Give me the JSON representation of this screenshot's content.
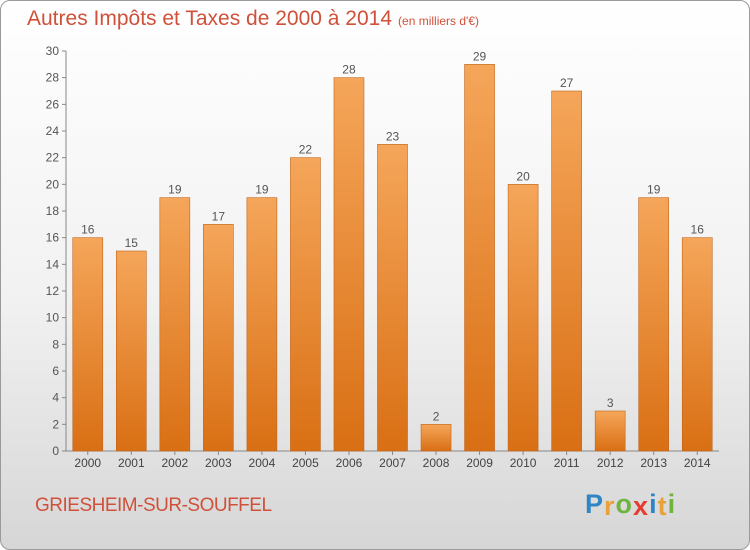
{
  "title": "Autres Impôts et Taxes de 2000 à 2014",
  "unit_note": "(en milliers d'€)",
  "commune": "GRIESHEIM-SUR-SOUFFEL",
  "logo": {
    "letters": [
      "P",
      "r",
      "o",
      "x",
      "i",
      "t",
      "i"
    ],
    "colors": [
      "#2f86c6",
      "#e8a23a",
      "#6fb43f",
      "#e53b30",
      "#2f86c6",
      "#e8a23a",
      "#6fb43f"
    ]
  },
  "colors": {
    "bar_top": "#f5a65a",
    "bar_bottom": "#d96f14",
    "bar_edge": "#c0651b",
    "label": "#555555",
    "axis": "#888888"
  },
  "chart_data": {
    "type": "bar",
    "categories": [
      "2000",
      "2001",
      "2002",
      "2003",
      "2004",
      "2005",
      "2006",
      "2007",
      "2008",
      "2009",
      "2010",
      "2011",
      "2012",
      "2013",
      "2014"
    ],
    "values": [
      16,
      15,
      19,
      17,
      19,
      22,
      28,
      23,
      2,
      29,
      20,
      27,
      3,
      19,
      16
    ],
    "ylim": [
      0,
      30
    ],
    "yticks": [
      0,
      2,
      4,
      6,
      8,
      10,
      12,
      14,
      16,
      18,
      20,
      22,
      24,
      26,
      28,
      30
    ],
    "grid": false,
    "data_labels": true
  }
}
